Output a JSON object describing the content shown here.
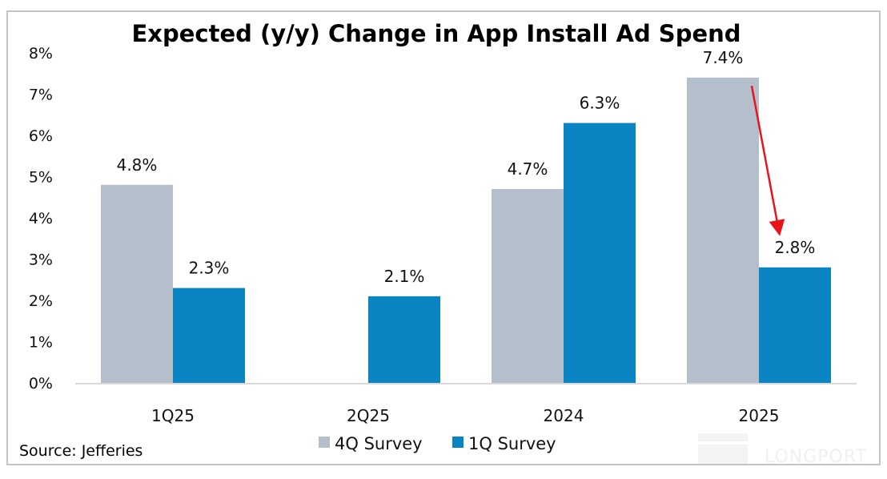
{
  "chart_data": {
    "type": "bar",
    "title": "Expected (y/y) Change in App Install Ad Spend",
    "xlabel": "",
    "ylabel": "",
    "categories": [
      "1Q25",
      "2Q25",
      "2024",
      "2025"
    ],
    "series": [
      {
        "name": "4Q Survey",
        "color": "#b5bfcc",
        "values": [
          4.8,
          null,
          4.7,
          7.4
        ],
        "labels": [
          "4.8%",
          "",
          "4.7%",
          "7.4%"
        ]
      },
      {
        "name": "1Q Survey",
        "color": "#0b84c3",
        "values": [
          2.3,
          2.1,
          6.3,
          2.8
        ],
        "labels": [
          "2.3%",
          "2.1%",
          "6.3%",
          "2.8%"
        ]
      }
    ],
    "ylim": [
      0,
      8
    ],
    "yticks": [
      0,
      1,
      2,
      3,
      4,
      5,
      6,
      7,
      8
    ],
    "ytick_labels": [
      "0%",
      "1%",
      "2%",
      "3%",
      "4%",
      "5%",
      "6%",
      "7%",
      "8%"
    ],
    "grid": false,
    "legend_position": "bottom-center",
    "annotations": [
      {
        "type": "arrow",
        "color": "#e8131b",
        "from": {
          "category": "2025",
          "series": "4Q Survey",
          "value": 7.2
        },
        "to": {
          "category": "2025",
          "series": "1Q Survey",
          "value": 3.5
        }
      }
    ]
  },
  "source": "Source: Jefferies",
  "watermark": "LONGPORT"
}
